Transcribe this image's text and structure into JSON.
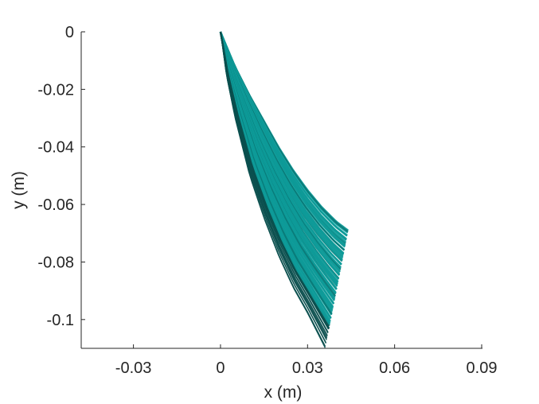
{
  "chart_data": {
    "type": "line",
    "title": "",
    "xlabel": "x (m)",
    "ylabel": "y (m)",
    "xlim": [
      -0.048,
      0.09
    ],
    "ylim": [
      -0.11,
      0
    ],
    "grid": false,
    "x_ticks": [
      {
        "value": -0.03,
        "label": "-0.03"
      },
      {
        "value": 0,
        "label": "0"
      },
      {
        "value": 0.03,
        "label": "0.03"
      },
      {
        "value": 0.06,
        "label": "0.06"
      },
      {
        "value": 0.09,
        "label": "0.09"
      }
    ],
    "y_ticks": [
      {
        "value": 0,
        "label": "0"
      },
      {
        "value": -0.02,
        "label": "-0.02"
      },
      {
        "value": -0.04,
        "label": "-0.04"
      },
      {
        "value": -0.06,
        "label": "-0.06"
      },
      {
        "value": -0.08,
        "label": "-0.08"
      },
      {
        "value": -0.1,
        "label": "-0.1"
      }
    ],
    "colors": {
      "teal": "#0e9a98",
      "light_teal": "#40c4c0",
      "dark_teal": "#0b4f4e",
      "axis": "#262626"
    },
    "family_description": "dense family of curves starting at the origin and fanning out; tips range from (0.044, -0.069) to (0.036, -0.110)",
    "envelope": {
      "upper": [
        [
          0,
          0
        ],
        [
          0.005,
          -0.012
        ],
        [
          0.01,
          -0.022
        ],
        [
          0.015,
          -0.031
        ],
        [
          0.02,
          -0.04
        ],
        [
          0.025,
          -0.048
        ],
        [
          0.03,
          -0.055
        ],
        [
          0.035,
          -0.061
        ],
        [
          0.04,
          -0.066
        ],
        [
          0.044,
          -0.069
        ]
      ],
      "lower": [
        [
          0,
          0
        ],
        [
          0.002,
          -0.015
        ],
        [
          0.005,
          -0.03
        ],
        [
          0.01,
          -0.05
        ],
        [
          0.015,
          -0.065
        ],
        [
          0.02,
          -0.078
        ],
        [
          0.025,
          -0.089
        ],
        [
          0.03,
          -0.098
        ],
        [
          0.033,
          -0.104
        ],
        [
          0.036,
          -0.11
        ]
      ]
    },
    "tip_edge": [
      [
        0.044,
        -0.069
      ],
      [
        0.044,
        -0.078
      ],
      [
        0.042,
        -0.083
      ],
      [
        0.041,
        -0.09
      ],
      [
        0.04,
        -0.097
      ],
      [
        0.038,
        -0.104
      ],
      [
        0.036,
        -0.11
      ]
    ]
  }
}
